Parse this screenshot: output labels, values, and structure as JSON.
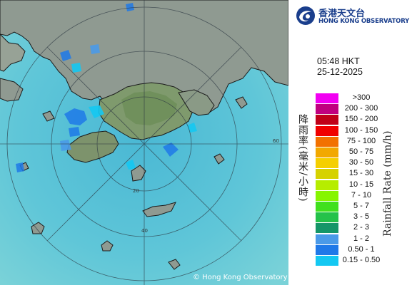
{
  "header": {
    "org_name_zh": "香港天文台",
    "org_name_en": "HONG KONG OBSERVATORY",
    "logo_icon": "hko-swirl-icon"
  },
  "timestamp": {
    "time": "05:48 HKT",
    "date": "25-12-2025"
  },
  "legend": {
    "title_zh": "降雨率(毫米/小時)",
    "title_en": "Rainfall Rate (mm/h)",
    "items": [
      {
        "label": ">300",
        "color": "#f200f2"
      },
      {
        "label": "200 - 300",
        "color": "#c0007f"
      },
      {
        "label": "150 - 200",
        "color": "#c00018"
      },
      {
        "label": "100 - 150",
        "color": "#f00000"
      },
      {
        "label": "75 - 100",
        "color": "#f27100"
      },
      {
        "label": "50 - 75",
        "color": "#f2a800"
      },
      {
        "label": "30 - 50",
        "color": "#f5cf00"
      },
      {
        "label": "15 - 30",
        "color": "#d6d200"
      },
      {
        "label": "10 - 15",
        "color": "#b6ed00"
      },
      {
        "label": "7 - 10",
        "color": "#86f500"
      },
      {
        "label": "5 - 7",
        "color": "#40e01e"
      },
      {
        "label": "3 - 5",
        "color": "#24c24a"
      },
      {
        "label": "2 - 3",
        "color": "#159668"
      },
      {
        "label": "1 - 2",
        "color": "#4a9ae8"
      },
      {
        "label": "0.50 - 1",
        "color": "#1f79e8"
      },
      {
        "label": "0.15 - 0.50",
        "color": "#14c8f2"
      }
    ]
  },
  "map": {
    "range_ring_labels": [
      "20",
      "40",
      "60"
    ],
    "copyright": "© Hong Kong Observatory",
    "colors": {
      "sea": "#5fc3d6",
      "land": "#8f9a91",
      "rain_light": "#1f79e8"
    }
  }
}
